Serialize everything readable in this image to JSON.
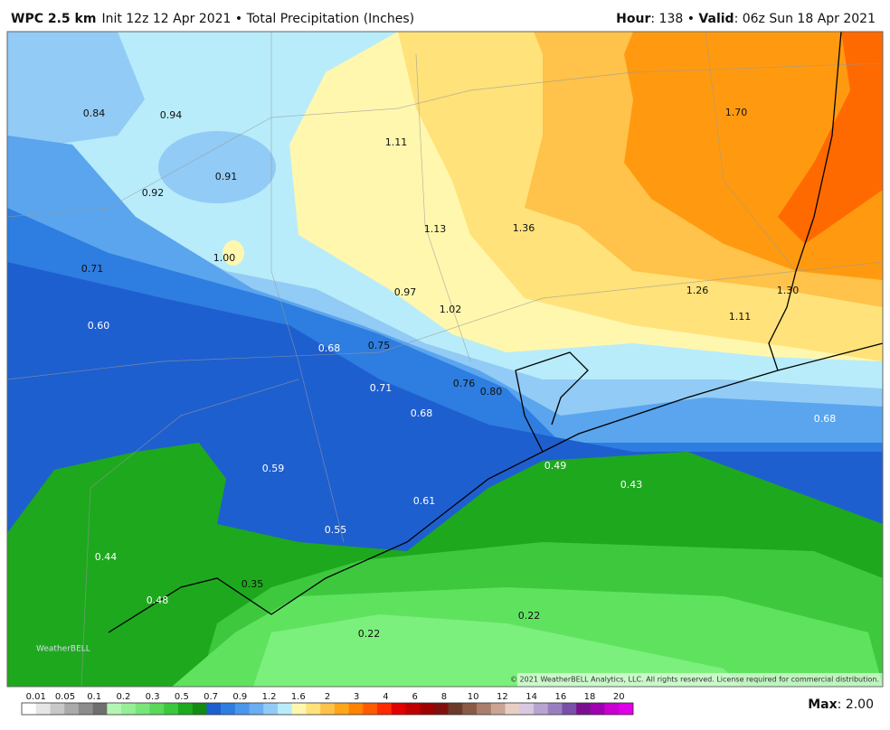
{
  "header": {
    "model": "WPC 2.5 km",
    "info": "Init 12z 12 Apr 2021 • Total Precipitation (Inches)",
    "right": [
      "Hour",
      ": 138 • ",
      "Valid",
      ": 06z Sun 18 Apr 2021"
    ]
  },
  "map": {
    "labels": [
      "0.84",
      "0.94",
      "1.11",
      "1.70",
      "0.91",
      "0.92",
      "1.13",
      "1.36",
      "1.00",
      "0.71",
      "0.97",
      "1.26",
      "1.30",
      "1.02",
      "1.11",
      "0.60",
      "0.68",
      "0.75",
      "0.76",
      "0.80",
      "0.71",
      "0.68",
      "0.68",
      "0.49",
      "0.43",
      "0.59",
      "0.61",
      "0.55",
      "0.44",
      "0.35",
      "0.48",
      "0.22",
      "0.22"
    ],
    "copyright": "© 2021 WeatherBELL Analytics, LLC. All rights reserved. License required for commercial distribution.",
    "logo": "WeatherBELL"
  },
  "colorbar": {
    "labels": [
      "0.01",
      "0.05",
      "0.1",
      "0.2",
      "0.3",
      "0.5",
      "0.7",
      "0.9",
      "1.2",
      "1.6",
      "2",
      "3",
      "4",
      "6",
      "8",
      "10",
      "12",
      "14",
      "16",
      "18",
      "20"
    ],
    "colors": [
      "#ffffff",
      "#e6e6e6",
      "#c8c8c8",
      "#aaaaaa",
      "#8c8c8c",
      "#6e6e6e",
      "#b4f5b4",
      "#96ee96",
      "#78e678",
      "#5ad85a",
      "#3cc83c",
      "#1eaa1e",
      "#148c14",
      "#1e5fcf",
      "#2e7de0",
      "#4a96ec",
      "#6aaef2",
      "#92cbf5",
      "#b8ecfa",
      "#fff7ae",
      "#ffe27a",
      "#ffc24a",
      "#ffa51a",
      "#ff8200",
      "#ff5a00",
      "#ff2a00",
      "#e00000",
      "#c00000",
      "#a00000",
      "#801010",
      "#6a3a2a",
      "#8a5a48",
      "#aa7e6c",
      "#caa494",
      "#e8cfc4",
      "#d8c8e0",
      "#b8a4d0",
      "#9880c0",
      "#7850a8",
      "#7a1090",
      "#a000b0",
      "#c800d0",
      "#e000e8"
    ]
  },
  "footer": {
    "max": [
      "Max",
      ": 2.00"
    ]
  }
}
